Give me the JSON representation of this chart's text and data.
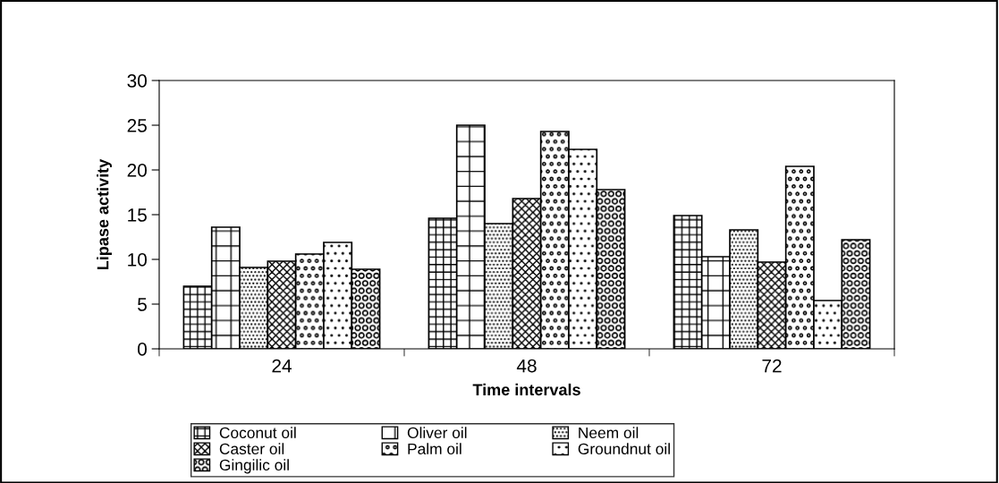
{
  "chart_data": {
    "type": "bar",
    "xlabel": "Time intervals",
    "ylabel": "Lipase activity",
    "categories": [
      "24",
      "48",
      "72"
    ],
    "series": [
      {
        "name": "Coconut oil",
        "color": "#000000",
        "values": [
          7.0,
          14.6,
          14.9
        ]
      },
      {
        "name": "Oliver oil",
        "color": "#000000",
        "values": [
          13.6,
          25.0,
          10.3
        ]
      },
      {
        "name": "Neem oil",
        "color": "#000000",
        "values": [
          9.1,
          14.0,
          13.3
        ]
      },
      {
        "name": "Caster oil",
        "color": "#000000",
        "values": [
          9.8,
          16.8,
          9.7
        ]
      },
      {
        "name": "Palm oil",
        "color": "#000000",
        "values": [
          10.6,
          24.3,
          20.4
        ]
      },
      {
        "name": "Groundnut oil",
        "color": "#000000",
        "values": [
          11.9,
          22.3,
          5.4
        ]
      },
      {
        "name": "Gingilic oil",
        "color": "#000000",
        "values": [
          8.9,
          17.8,
          12.2
        ]
      }
    ],
    "ylim": [
      0,
      30
    ],
    "yticks": [
      0,
      5,
      10,
      15,
      20,
      25,
      30
    ],
    "grid": false,
    "legend": "bottom"
  }
}
